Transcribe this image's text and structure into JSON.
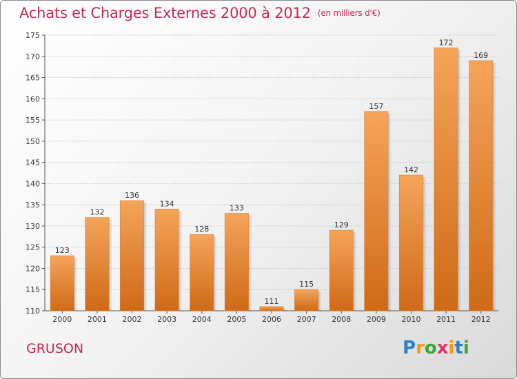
{
  "title": "Achats et Charges Externes 2000 à 2012",
  "unit": "(en milliers d'€)",
  "commune": "GRUSON",
  "logo": {
    "letters": [
      "P",
      "r",
      "o",
      "x",
      "i",
      "t",
      "i"
    ],
    "colors": [
      "#2a7fc9",
      "#f39c12",
      "#3aa935",
      "#e2336b",
      "#f39c12",
      "#2a7fc9",
      "#3aa935"
    ]
  },
  "colors": {
    "title": "#c42a52",
    "bar_top": "#f5a45a",
    "bar_bottom": "#cf6a17"
  },
  "chart_data": {
    "type": "bar",
    "title": "Achats et Charges Externes 2000 à 2012",
    "categories": [
      "2000",
      "2001",
      "2002",
      "2003",
      "2004",
      "2005",
      "2006",
      "2007",
      "2008",
      "2009",
      "2010",
      "2011",
      "2012"
    ],
    "values": [
      123,
      132,
      136,
      134,
      128,
      133,
      111,
      115,
      129,
      157,
      142,
      172,
      169
    ],
    "ylim": [
      110,
      175
    ],
    "yticks": [
      110,
      115,
      120,
      125,
      130,
      135,
      140,
      145,
      150,
      155,
      160,
      165,
      170,
      175
    ],
    "grid": true,
    "xlabel": "",
    "ylabel": ""
  }
}
